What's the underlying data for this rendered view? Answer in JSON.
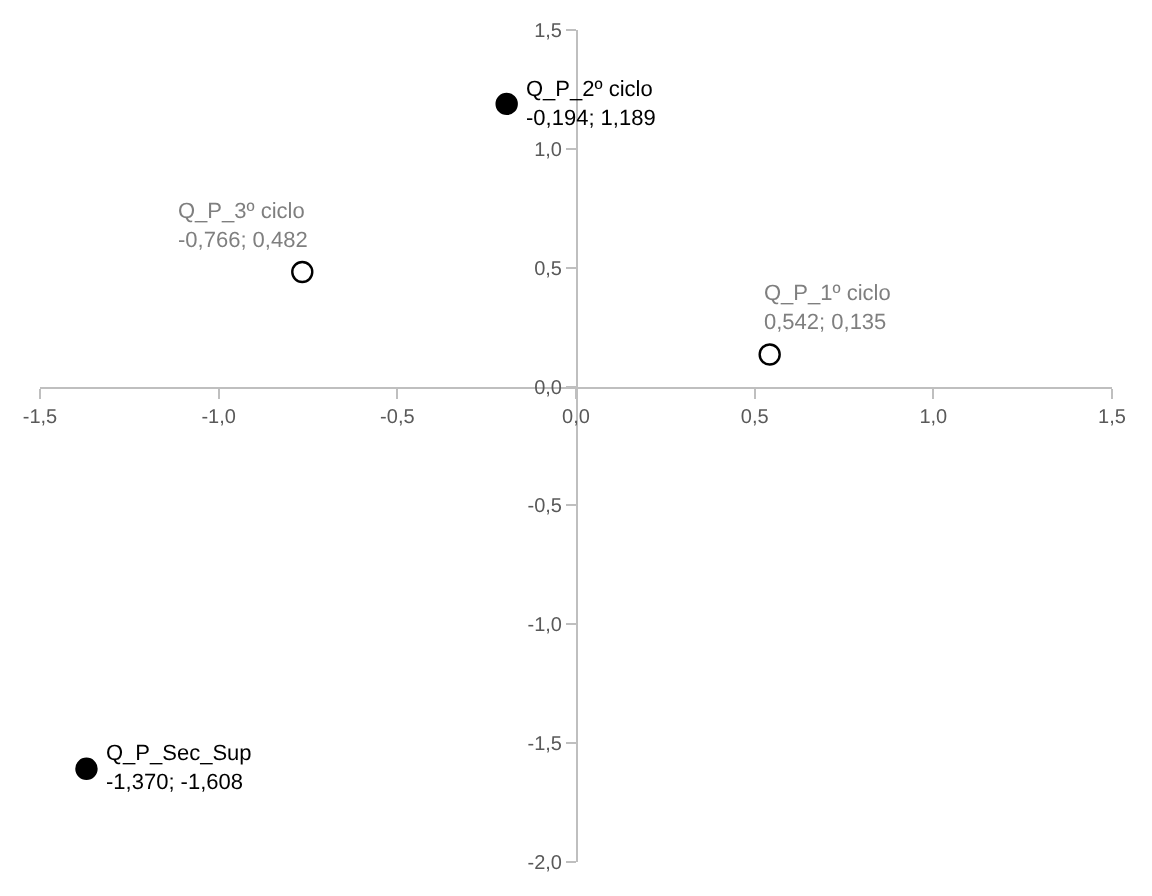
{
  "chart_data": {
    "type": "scatter",
    "marker": "circle",
    "series": [
      {
        "x": [
          -0.194,
          -1.37
        ],
        "values": [
          1.189,
          -1.608
        ],
        "color": "#000000"
      },
      {
        "x": [
          -0.766,
          0.542
        ],
        "values": [
          0.482,
          0.135
        ],
        "color": "#ffffff"
      }
    ],
    "xlim": [
      -1.5,
      1.5
    ],
    "ylim": [
      -2.0,
      1.5
    ],
    "xticks": [
      {
        "value": -1.5,
        "label": "-1,5"
      },
      {
        "value": -1.0,
        "label": "-1,0"
      },
      {
        "value": -0.5,
        "label": "-0,5"
      },
      {
        "value": 0.0,
        "label": "0,0"
      },
      {
        "value": 0.5,
        "label": "0,5"
      },
      {
        "value": 1.0,
        "label": "1,0"
      },
      {
        "value": 1.5,
        "label": "1,5"
      }
    ],
    "yticks": [
      {
        "value": -2.0,
        "label": "-2,0"
      },
      {
        "value": -1.5,
        "label": "-1,5"
      },
      {
        "value": -1.0,
        "label": "-1,0"
      },
      {
        "value": -0.5,
        "label": "-0,5"
      },
      {
        "value": 0.0,
        "label": "0,0"
      },
      {
        "value": 0.5,
        "label": "0,5"
      },
      {
        "value": 1.0,
        "label": "1,0"
      },
      {
        "value": 1.5,
        "label": "1,5"
      }
    ],
    "annotations": [
      {
        "text": "Q_P_2º ciclo\n-0,194; 1,189",
        "x": -0.194,
        "y": 1.189
      },
      {
        "text": "Q_P_3º ciclo\n-0,766; 0,482",
        "x": -0.766,
        "y": 0.482
      },
      {
        "text": "Q_P_1º ciclo\n0,542; 0,135",
        "x": 0.542,
        "y": 0.135
      },
      {
        "text": "Q_P_Sec_Sup\n-1,370; -1,608",
        "x": -1.37,
        "y": -1.608
      }
    ]
  }
}
